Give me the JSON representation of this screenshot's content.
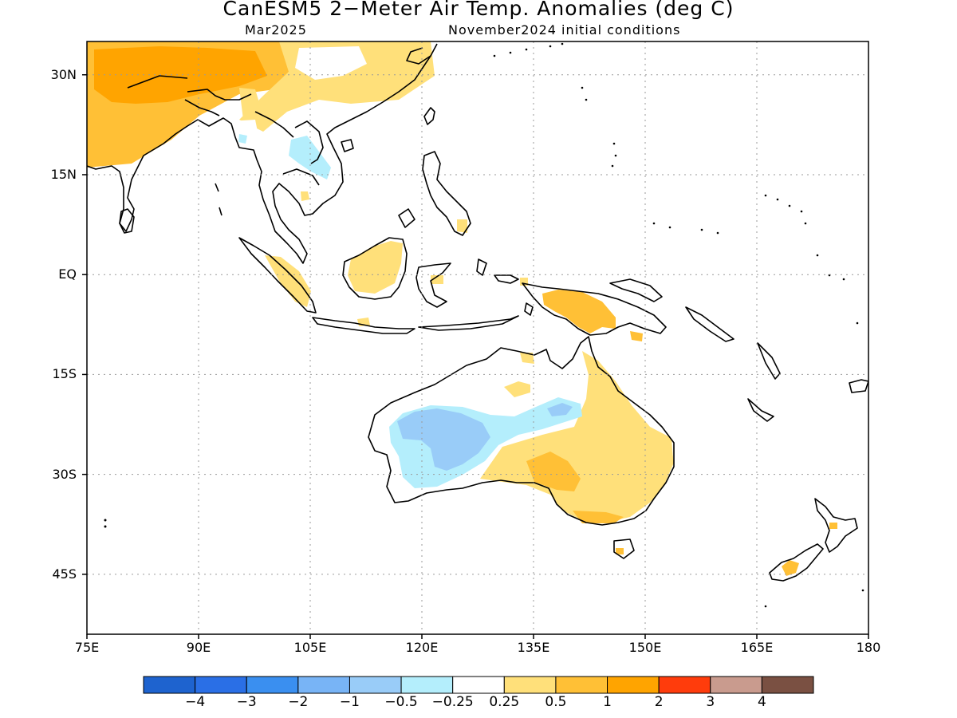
{
  "header": {
    "title": "CanESM5 2−Meter Air Temp. Anomalies (deg C)",
    "target_month": "Mar2025",
    "init_conditions": "November2024 initial conditions"
  },
  "map": {
    "lon_range": [
      75,
      180
    ],
    "lat_range": [
      -54,
      35
    ],
    "gridlines": "dotted",
    "lat_labels": [
      "30N",
      "15N",
      "EQ",
      "15S",
      "30S",
      "45S"
    ],
    "lat_values": [
      30,
      15,
      0,
      -15,
      -30,
      -45
    ],
    "lon_labels": [
      "75E",
      "90E",
      "105E",
      "120E",
      "135E",
      "150E",
      "165E",
      "180"
    ],
    "lon_values": [
      75,
      90,
      105,
      120,
      135,
      150,
      165,
      180
    ],
    "land_color": "#ffffff",
    "coastline_color": "#000000"
  },
  "colorbar": {
    "colors": [
      "#1e63cf",
      "#2a6fe6",
      "#3a8ff0",
      "#78b4f6",
      "#99ccf8",
      "#b4eefc",
      "#ffffff",
      "#ffe07a",
      "#ffc036",
      "#ffa400",
      "#ff3c0c",
      "#c99b8e",
      "#7a5042"
    ],
    "labels": [
      "−4",
      "−3",
      "−2",
      "−1",
      "−0.5",
      "−0.25",
      "0.25",
      "0.5",
      "1",
      "2",
      "3",
      "4"
    ]
  },
  "anomaly_regions": [
    {
      "name": "south-asia-warm",
      "level": "0.5 to 1"
    },
    {
      "name": "tibet-warm",
      "level": "1 to 2"
    },
    {
      "name": "south-china-warm",
      "level": "0.25 to 0.5"
    },
    {
      "name": "indochina-cool",
      "level": "-0.5 to -0.25"
    },
    {
      "name": "borneo-warm",
      "level": "0.25 to 0.5"
    },
    {
      "name": "sumatra-warm",
      "level": "0.25 to 0.5"
    },
    {
      "name": "new-guinea-warm",
      "level": "0.5 to 1"
    },
    {
      "name": "western-australia-cool",
      "level": "-1 to -0.5"
    },
    {
      "name": "eastern-australia-warm",
      "level": "0.25 to 0.5"
    },
    {
      "name": "south-australia-warm",
      "level": "0.5 to 1"
    },
    {
      "name": "new-zealand-warm",
      "level": "0.5 to 1"
    }
  ]
}
